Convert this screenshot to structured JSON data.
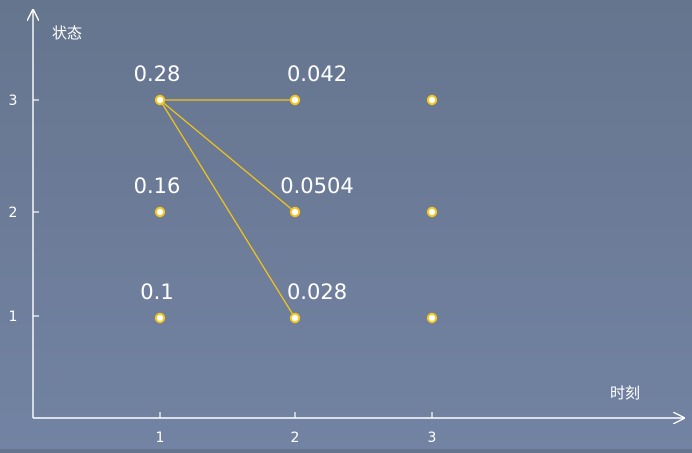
{
  "axes": {
    "y_label": "状态",
    "x_label": "时刻",
    "x_ticks": [
      "1",
      "2",
      "3"
    ],
    "y_ticks": [
      "1",
      "2",
      "3"
    ]
  },
  "colors": {
    "accent": "#f5c518",
    "axis": "#ffffff",
    "node_fill": "#ffffff"
  },
  "nodes": [
    {
      "id": "t1s3",
      "time": 1,
      "state": 3,
      "label": "0.28"
    },
    {
      "id": "t1s2",
      "time": 1,
      "state": 2,
      "label": "0.16"
    },
    {
      "id": "t1s1",
      "time": 1,
      "state": 1,
      "label": "0.1"
    },
    {
      "id": "t2s3",
      "time": 2,
      "state": 3,
      "label": "0.042"
    },
    {
      "id": "t2s2",
      "time": 2,
      "state": 2,
      "label": "0.0504"
    },
    {
      "id": "t2s1",
      "time": 2,
      "state": 1,
      "label": "0.028"
    },
    {
      "id": "t3s3",
      "time": 3,
      "state": 3,
      "label": ""
    },
    {
      "id": "t3s2",
      "time": 3,
      "state": 2,
      "label": ""
    },
    {
      "id": "t3s1",
      "time": 3,
      "state": 1,
      "label": ""
    }
  ],
  "edges": [
    {
      "from": "t1s3",
      "to": "t2s3"
    },
    {
      "from": "t1s3",
      "to": "t2s2"
    },
    {
      "from": "t1s3",
      "to": "t2s1"
    }
  ]
}
